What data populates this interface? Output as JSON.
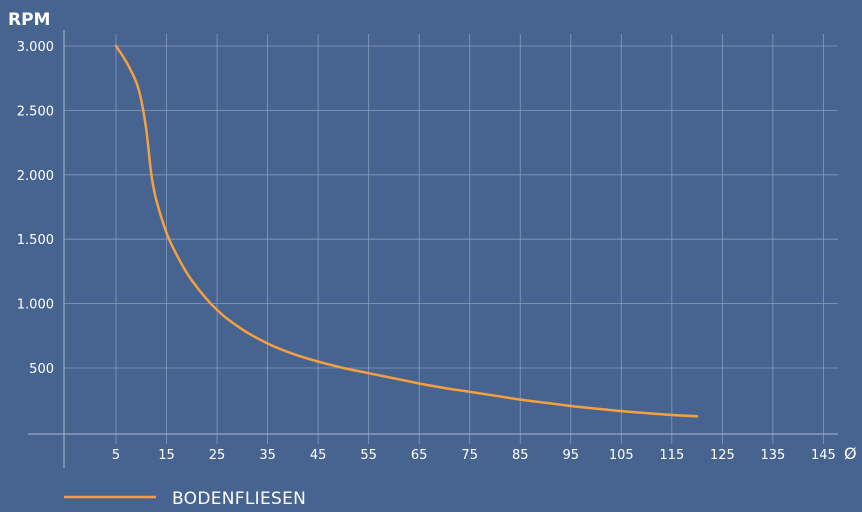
{
  "chart_data": {
    "type": "line",
    "ylabel": "RPM",
    "xlabel": "Ø",
    "xlim": [
      -5,
      150
    ],
    "ylim": [
      -100,
      3000
    ],
    "x_ticks": [
      5,
      15,
      25,
      35,
      45,
      55,
      65,
      75,
      85,
      95,
      105,
      115,
      125,
      135,
      145
    ],
    "x_tick_labels": [
      "5",
      "15",
      "25",
      "35",
      "45",
      "55",
      "65",
      "75",
      "85",
      "95",
      "105",
      "115",
      "125",
      "135",
      "145"
    ],
    "y_ticks": [
      500,
      1000,
      1500,
      2000,
      2500,
      3000
    ],
    "y_tick_labels": [
      "500",
      "1.000",
      "1.500",
      "2.000",
      "2.500",
      "3.000"
    ],
    "grid": true,
    "legend_position": "bottom-left",
    "series": [
      {
        "name": "BODENFLIESEN",
        "color": "#f5a040",
        "x": [
          5,
          7,
          9,
          10,
          11,
          12,
          13,
          15,
          17,
          20,
          25,
          30,
          35,
          40,
          45,
          50,
          55,
          60,
          65,
          70,
          75,
          80,
          85,
          90,
          95,
          100,
          105,
          110,
          115,
          120
        ],
        "y": [
          3000,
          2880,
          2720,
          2580,
          2350,
          2000,
          1800,
          1550,
          1380,
          1180,
          950,
          800,
          690,
          610,
          550,
          500,
          460,
          420,
          380,
          345,
          315,
          285,
          255,
          230,
          205,
          185,
          165,
          150,
          135,
          125
        ]
      }
    ]
  }
}
